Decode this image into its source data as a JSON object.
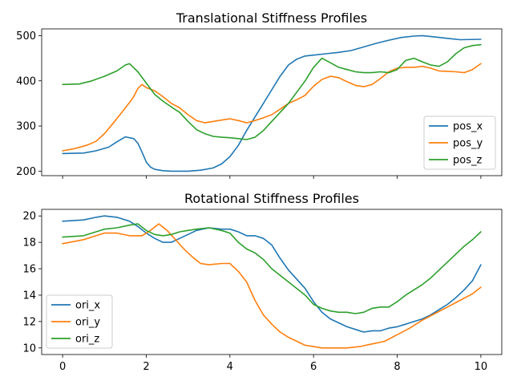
{
  "chart_data": [
    {
      "type": "line",
      "title": "Translational Stiffness Profiles",
      "xlabel": "",
      "ylabel": "",
      "xlim": [
        -0.5,
        10.5
      ],
      "ylim": [
        190,
        515
      ],
      "xticks": [
        0,
        2,
        4,
        6,
        8,
        10
      ],
      "yticks": [
        200,
        300,
        400,
        500
      ],
      "show_xtick_labels": false,
      "grid": false,
      "legend": "lower right",
      "series": [
        {
          "name": "pos_x",
          "color": "#1f77b4",
          "x": [
            0,
            0.5,
            0.8,
            1.1,
            1.3,
            1.5,
            1.7,
            1.8,
            1.9,
            2.0,
            2.1,
            2.2,
            2.4,
            2.6,
            3.0,
            3.3,
            3.6,
            3.8,
            4.0,
            4.2,
            4.4,
            4.6,
            4.8,
            5.0,
            5.2,
            5.4,
            5.6,
            5.8,
            6.0,
            6.3,
            6.6,
            6.9,
            7.2,
            7.5,
            7.8,
            8.1,
            8.4,
            8.6,
            8.9,
            9.2,
            9.5,
            10.0
          ],
          "y": [
            239,
            240,
            245,
            253,
            265,
            276,
            272,
            262,
            242,
            220,
            209,
            204,
            201,
            200,
            200,
            202,
            207,
            216,
            232,
            257,
            290,
            320,
            350,
            380,
            410,
            435,
            448,
            455,
            457,
            460,
            463,
            467,
            475,
            483,
            490,
            496,
            499,
            500,
            497,
            494,
            491,
            492
          ]
        },
        {
          "name": "pos_y",
          "color": "#ff7f0e",
          "x": [
            0,
            0.3,
            0.6,
            0.8,
            1.0,
            1.2,
            1.4,
            1.6,
            1.7,
            1.8,
            1.9,
            2.0,
            2.2,
            2.4,
            2.6,
            2.8,
            3.0,
            3.2,
            3.4,
            3.6,
            3.8,
            4.0,
            4.2,
            4.4,
            4.6,
            4.8,
            5.0,
            5.2,
            5.4,
            5.6,
            5.8,
            6.0,
            6.2,
            6.4,
            6.6,
            6.8,
            7.0,
            7.2,
            7.4,
            7.6,
            7.8,
            8.0,
            8.2,
            8.4,
            8.6,
            8.8,
            9.0,
            9.2,
            9.4,
            9.6,
            9.8,
            10.0
          ],
          "y": [
            245,
            250,
            258,
            266,
            283,
            305,
            328,
            352,
            365,
            383,
            392,
            385,
            378,
            365,
            350,
            340,
            325,
            312,
            307,
            310,
            313,
            316,
            312,
            307,
            312,
            318,
            325,
            337,
            350,
            358,
            368,
            388,
            403,
            410,
            407,
            398,
            390,
            387,
            392,
            405,
            420,
            428,
            430,
            430,
            432,
            428,
            422,
            421,
            420,
            418,
            425,
            438
          ]
        },
        {
          "name": "pos_z",
          "color": "#2ca02c",
          "x": [
            0,
            0.4,
            0.7,
            1.0,
            1.3,
            1.5,
            1.6,
            1.8,
            2.0,
            2.2,
            2.4,
            2.6,
            2.8,
            3.0,
            3.2,
            3.4,
            3.6,
            3.8,
            4.0,
            4.2,
            4.4,
            4.6,
            4.8,
            5.0,
            5.2,
            5.4,
            5.6,
            5.8,
            6.0,
            6.2,
            6.4,
            6.6,
            6.8,
            7.0,
            7.2,
            7.4,
            7.6,
            7.8,
            8.0,
            8.2,
            8.4,
            8.6,
            8.8,
            9.0,
            9.2,
            9.4,
            9.6,
            9.8,
            10.0
          ],
          "y": [
            392,
            393,
            400,
            410,
            422,
            435,
            438,
            420,
            395,
            370,
            355,
            342,
            330,
            310,
            292,
            283,
            277,
            275,
            274,
            272,
            270,
            275,
            290,
            310,
            330,
            350,
            375,
            400,
            430,
            450,
            440,
            430,
            425,
            420,
            418,
            418,
            420,
            418,
            425,
            445,
            450,
            442,
            435,
            432,
            442,
            460,
            473,
            478,
            480
          ]
        }
      ]
    },
    {
      "type": "line",
      "title": "Rotational Stiffness Profiles",
      "xlabel": "",
      "ylabel": "",
      "xlim": [
        -0.5,
        10.5
      ],
      "ylim": [
        9.5,
        20.5
      ],
      "xticks": [
        0,
        2,
        4,
        6,
        8,
        10
      ],
      "yticks": [
        10,
        12,
        14,
        16,
        18,
        20
      ],
      "show_xtick_labels": true,
      "grid": false,
      "legend": "lower left",
      "series": [
        {
          "name": "ori_x",
          "color": "#1f77b4",
          "x": [
            0,
            0.5,
            0.8,
            1.0,
            1.3,
            1.6,
            1.8,
            2.0,
            2.2,
            2.4,
            2.6,
            2.8,
            3.0,
            3.2,
            3.5,
            3.8,
            4.0,
            4.2,
            4.4,
            4.6,
            4.8,
            5.0,
            5.2,
            5.4,
            5.6,
            5.8,
            6.0,
            6.2,
            6.4,
            6.6,
            6.8,
            7.0,
            7.2,
            7.4,
            7.6,
            7.8,
            8.0,
            8.2,
            8.4,
            8.6,
            8.8,
            9.0,
            9.2,
            9.4,
            9.6,
            9.8,
            10.0
          ],
          "y": [
            19.6,
            19.7,
            19.9,
            20.0,
            19.9,
            19.6,
            19.2,
            18.7,
            18.3,
            18.0,
            18.0,
            18.3,
            18.6,
            18.9,
            19.1,
            19.0,
            19.0,
            18.8,
            18.5,
            18.5,
            18.3,
            17.8,
            16.8,
            15.9,
            15.2,
            14.5,
            13.5,
            12.7,
            12.2,
            11.9,
            11.6,
            11.4,
            11.2,
            11.3,
            11.3,
            11.5,
            11.6,
            11.8,
            12.0,
            12.2,
            12.5,
            12.9,
            13.3,
            13.8,
            14.4,
            15.1,
            16.3
          ]
        },
        {
          "name": "ori_y",
          "color": "#ff7f0e",
          "x": [
            0,
            0.5,
            0.8,
            1.0,
            1.3,
            1.6,
            1.9,
            2.1,
            2.3,
            2.5,
            2.7,
            2.9,
            3.1,
            3.3,
            3.5,
            3.8,
            4.0,
            4.2,
            4.4,
            4.6,
            4.8,
            5.0,
            5.2,
            5.4,
            5.6,
            5.8,
            6.0,
            6.2,
            6.5,
            6.8,
            7.1,
            7.4,
            7.7,
            8.0,
            8.3,
            8.6,
            8.9,
            9.2,
            9.5,
            9.8,
            10.0
          ],
          "y": [
            17.9,
            18.2,
            18.5,
            18.7,
            18.7,
            18.5,
            18.5,
            18.9,
            19.4,
            18.9,
            18.2,
            17.5,
            16.9,
            16.4,
            16.3,
            16.4,
            16.4,
            15.8,
            15.0,
            13.6,
            12.5,
            11.8,
            11.2,
            10.8,
            10.5,
            10.2,
            10.1,
            10.0,
            10.0,
            10.0,
            10.1,
            10.3,
            10.5,
            11.0,
            11.5,
            12.1,
            12.6,
            13.1,
            13.6,
            14.1,
            14.6
          ]
        },
        {
          "name": "ori_z",
          "color": "#2ca02c",
          "x": [
            0,
            0.5,
            0.8,
            1.0,
            1.3,
            1.6,
            1.8,
            2.0,
            2.2,
            2.4,
            2.6,
            2.8,
            3.0,
            3.2,
            3.5,
            3.8,
            4.0,
            4.2,
            4.4,
            4.6,
            4.8,
            5.0,
            5.2,
            5.4,
            5.6,
            5.8,
            6.0,
            6.2,
            6.4,
            6.6,
            6.8,
            7.0,
            7.2,
            7.4,
            7.6,
            7.8,
            8.0,
            8.2,
            8.4,
            8.6,
            8.8,
            9.0,
            9.2,
            9.4,
            9.6,
            9.8,
            10.0
          ],
          "y": [
            18.4,
            18.5,
            18.8,
            19.0,
            19.1,
            19.3,
            19.4,
            18.9,
            18.6,
            18.5,
            18.6,
            18.8,
            18.9,
            19.0,
            19.1,
            18.9,
            18.7,
            18.0,
            17.5,
            17.2,
            16.7,
            16.0,
            15.5,
            15.0,
            14.5,
            14.0,
            13.3,
            13.0,
            12.8,
            12.7,
            12.7,
            12.6,
            12.7,
            13.0,
            13.1,
            13.1,
            13.5,
            14.0,
            14.4,
            14.8,
            15.3,
            15.9,
            16.5,
            17.1,
            17.7,
            18.2,
            18.8
          ]
        }
      ]
    }
  ]
}
